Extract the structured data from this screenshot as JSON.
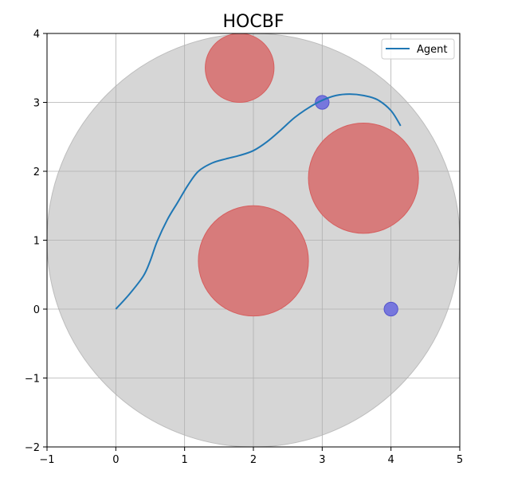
{
  "chart_data": {
    "type": "line",
    "title": "HOCBF",
    "xlabel": "",
    "ylabel": "",
    "xlim": [
      -1,
      5
    ],
    "ylim": [
      -2,
      4
    ],
    "xticks": [
      -1,
      0,
      1,
      2,
      3,
      4,
      5
    ],
    "yticks": [
      -2,
      -1,
      0,
      1,
      2,
      3,
      4
    ],
    "xtick_labels": [
      "−1",
      "0",
      "1",
      "2",
      "3",
      "4",
      "5"
    ],
    "ytick_labels": [
      "−2",
      "−1",
      "0",
      "1",
      "2",
      "3",
      "4"
    ],
    "grid": true,
    "legend": {
      "placement": "top-right",
      "entries": [
        {
          "label": "Agent",
          "color": "#1f77b4"
        }
      ]
    },
    "colors": {
      "agent_line": "#1f77b4",
      "boundary_fill": "#d6d6d6",
      "boundary_stroke": "#bdbdbd",
      "obstacle_fill": "#d77b7b",
      "obstacle_stroke": "#d65f5f",
      "goal_fill": "#7777dd",
      "goal_stroke": "#5555cc",
      "grid": "#b0b0b0"
    },
    "boundary": {
      "center": [
        2,
        1
      ],
      "radius": 3
    },
    "obstacles": [
      {
        "center": [
          1.8,
          3.5
        ],
        "radius": 0.5
      },
      {
        "center": [
          3.6,
          1.9
        ],
        "radius": 0.8
      },
      {
        "center": [
          2.0,
          0.7
        ],
        "radius": 0.8
      }
    ],
    "goals": [
      {
        "center": [
          3.0,
          3.0
        ],
        "radius": 0.1
      },
      {
        "center": [
          4.0,
          0.0
        ],
        "radius": 0.1
      }
    ],
    "series": [
      {
        "name": "Agent",
        "points": [
          [
            0.0,
            0.0
          ],
          [
            0.2,
            0.22
          ],
          [
            0.4,
            0.48
          ],
          [
            0.5,
            0.7
          ],
          [
            0.6,
            0.98
          ],
          [
            0.75,
            1.3
          ],
          [
            0.9,
            1.55
          ],
          [
            1.05,
            1.8
          ],
          [
            1.2,
            2.0
          ],
          [
            1.4,
            2.12
          ],
          [
            1.6,
            2.18
          ],
          [
            1.8,
            2.23
          ],
          [
            2.0,
            2.3
          ],
          [
            2.2,
            2.43
          ],
          [
            2.4,
            2.6
          ],
          [
            2.6,
            2.78
          ],
          [
            2.8,
            2.92
          ],
          [
            3.0,
            3.03
          ],
          [
            3.2,
            3.1
          ],
          [
            3.4,
            3.12
          ],
          [
            3.6,
            3.1
          ],
          [
            3.8,
            3.04
          ],
          [
            4.0,
            2.88
          ],
          [
            4.14,
            2.66
          ]
        ]
      }
    ]
  }
}
